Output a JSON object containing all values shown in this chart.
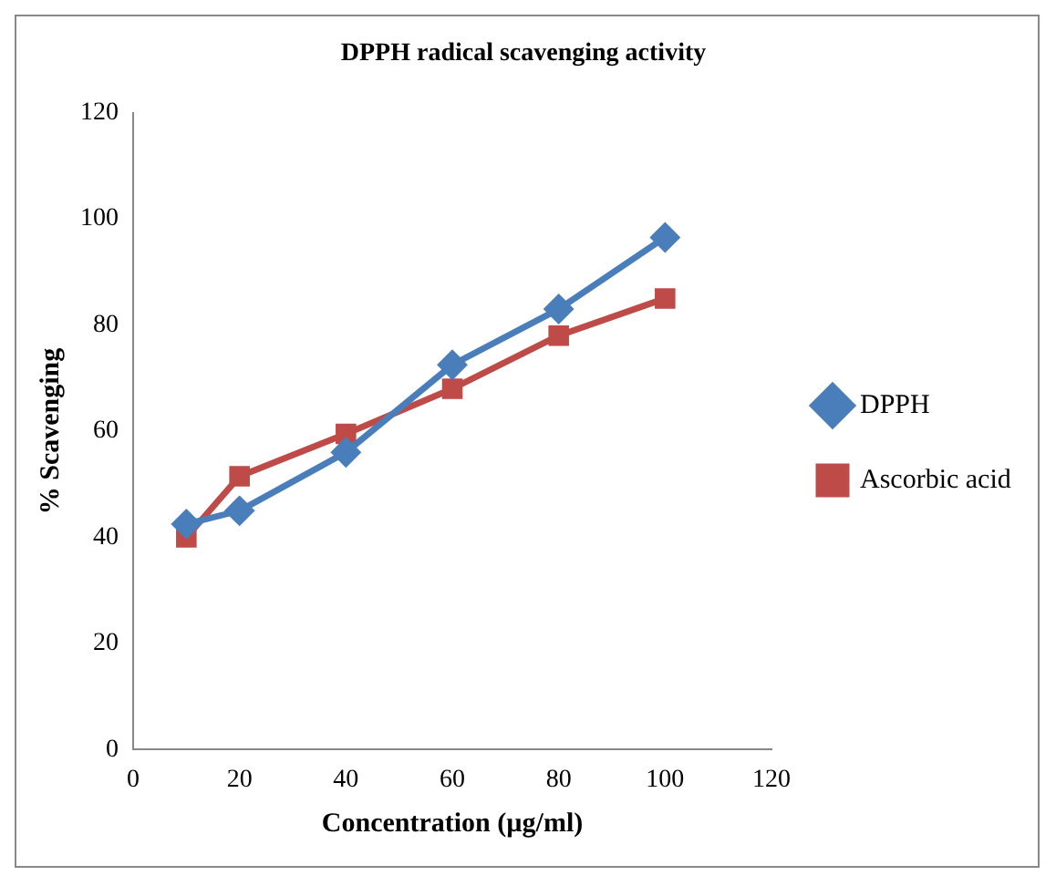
{
  "chart_data": {
    "type": "line",
    "title": "DPPH radical scavenging activity",
    "xlabel": "Concentration (µg/ml)",
    "ylabel": "% Scavenging",
    "x": [
      10,
      20,
      40,
      60,
      80,
      100
    ],
    "series": [
      {
        "name": "DPPH",
        "color": "#4a7ebb",
        "marker": "diamond",
        "values": [
          42.5,
          45,
          56,
          72.5,
          83,
          96.5
        ]
      },
      {
        "name": "Ascorbic acid",
        "color": "#be4b48",
        "marker": "square",
        "values": [
          40,
          51.5,
          59.5,
          68,
          78,
          85
        ]
      }
    ],
    "xlim": [
      0,
      120
    ],
    "xticks": [
      0,
      20,
      40,
      60,
      80,
      100,
      120
    ],
    "ylim": [
      0,
      120
    ],
    "yticks": [
      0,
      20,
      40,
      60,
      80,
      100,
      120
    ],
    "grid": false,
    "legend": "right"
  }
}
